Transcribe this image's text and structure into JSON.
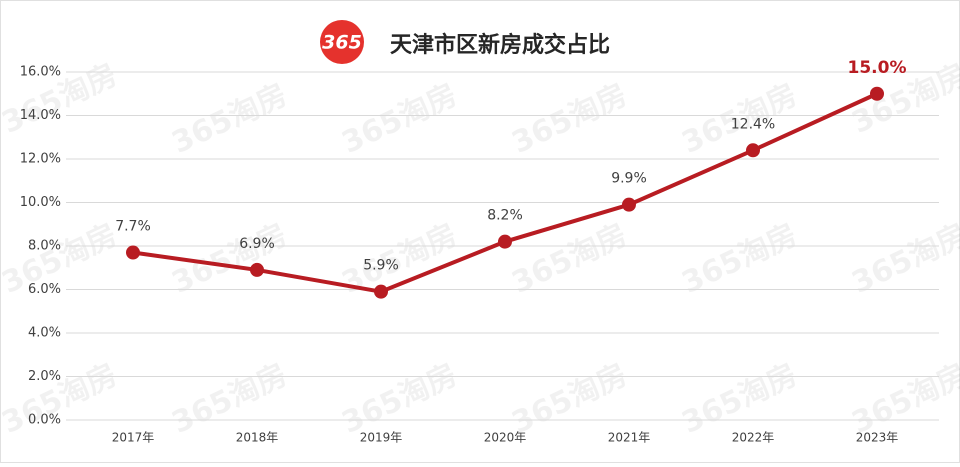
{
  "chart_data": {
    "type": "line",
    "title": "天津市区新房成交占比",
    "logo": "365",
    "watermark": "365淘房",
    "categories": [
      "2017年",
      "2018年",
      "2019年",
      "2020年",
      "2021年",
      "2022年",
      "2023年"
    ],
    "series": [
      {
        "name": "新房成交占比",
        "color": "#b81c22",
        "values": [
          7.7,
          6.9,
          5.9,
          8.2,
          9.9,
          12.4,
          15.0
        ],
        "value_labels": [
          "7.7%",
          "6.9%",
          "5.9%",
          "8.2%",
          "9.9%",
          "12.4%",
          "15.0%"
        ]
      }
    ],
    "ylim": [
      0,
      16
    ],
    "yticks": [
      {
        "value": 0,
        "label": "0.0%"
      },
      {
        "value": 2,
        "label": "2.0%"
      },
      {
        "value": 4,
        "label": "4.0%"
      },
      {
        "value": 6,
        "label": "6.0%"
      },
      {
        "value": 8,
        "label": "8.0%"
      },
      {
        "value": 10,
        "label": "10.0%"
      },
      {
        "value": 12,
        "label": "12.0%"
      },
      {
        "value": 14,
        "label": "14.0%"
      },
      {
        "value": 16,
        "label": "16.0%"
      }
    ],
    "grid": true
  }
}
